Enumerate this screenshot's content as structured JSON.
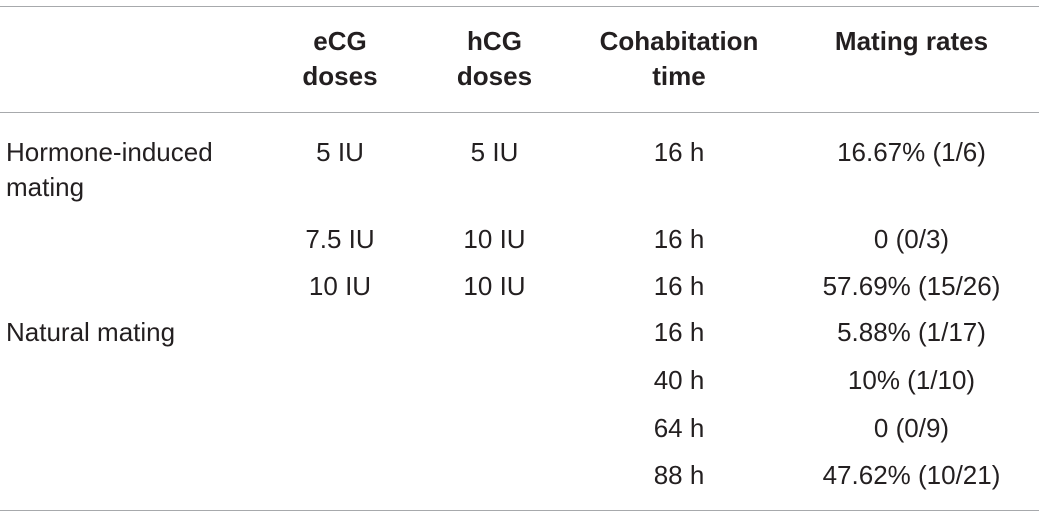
{
  "table": {
    "headers": {
      "group": "",
      "ecg_line1": "eCG",
      "ecg_line2": "doses",
      "hcg_line1": "hCG",
      "hcg_line2": "doses",
      "time_line1": "Cohabitation",
      "time_line2": "time",
      "rate": "Mating rates"
    },
    "rows": [
      {
        "group": "Hormone-induced mating",
        "ecg": "5 IU",
        "hcg": "5 IU",
        "time": "16 h",
        "rate": "16.67% (1/6)"
      },
      {
        "group": "",
        "ecg": "7.5 IU",
        "hcg": "10 IU",
        "time": "16 h",
        "rate": "0 (0/3)"
      },
      {
        "group": "",
        "ecg": "10 IU",
        "hcg": "10 IU",
        "time": "16 h",
        "rate": "57.69% (15/26)"
      },
      {
        "group": "Natural mating",
        "ecg": "",
        "hcg": "",
        "time": "16 h",
        "rate": "5.88% (1/17)"
      },
      {
        "group": "",
        "ecg": "",
        "hcg": "",
        "time": "40 h",
        "rate": "10% (1/10)"
      },
      {
        "group": "",
        "ecg": "",
        "hcg": "",
        "time": "64 h",
        "rate": "0 (0/9)"
      },
      {
        "group": "",
        "ecg": "",
        "hcg": "",
        "time": "88 h",
        "rate": "47.62% (10/21)"
      }
    ]
  }
}
